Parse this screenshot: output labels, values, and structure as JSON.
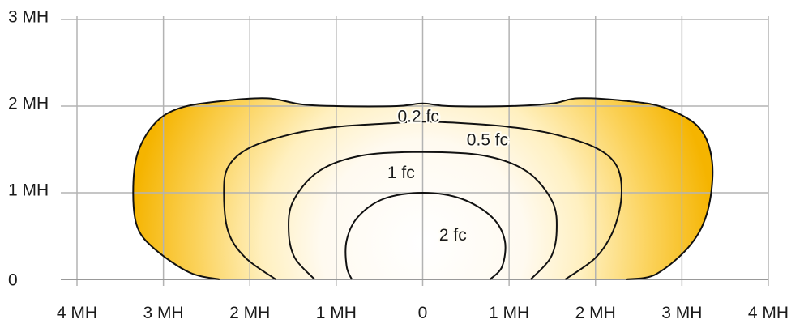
{
  "chart_data": {
    "type": "contour",
    "title": "",
    "xlabel": "",
    "ylabel": "",
    "xlim": [
      -4,
      4
    ],
    "ylim": [
      0,
      3
    ],
    "grid": true,
    "x_ticks": [
      {
        "value": -4,
        "label": "4 MH"
      },
      {
        "value": -3,
        "label": "3 MH"
      },
      {
        "value": -2,
        "label": "2 MH"
      },
      {
        "value": -1,
        "label": "1 MH"
      },
      {
        "value": 0,
        "label": "0"
      },
      {
        "value": 1,
        "label": "1 MH"
      },
      {
        "value": 2,
        "label": "2 MH"
      },
      {
        "value": 3,
        "label": "3 MH"
      },
      {
        "value": 4,
        "label": "4 MH"
      }
    ],
    "y_ticks": [
      {
        "value": 0,
        "label": "0"
      },
      {
        "value": 1,
        "label": "1 MH"
      },
      {
        "value": 2,
        "label": "2 MH"
      },
      {
        "value": 3,
        "label": "3 MH"
      }
    ],
    "fill_colors": {
      "outer": "#f5b400",
      "inner": "#ffffff"
    },
    "contours": [
      {
        "level": 0.2,
        "label": "0.2 fc",
        "label_pos": [
          -0.05,
          1.87
        ],
        "points": [
          [
            -2.35,
            0
          ],
          [
            -2.7,
            0.08
          ],
          [
            -3.1,
            0.35
          ],
          [
            -3.3,
            0.6
          ],
          [
            -3.35,
            1.0
          ],
          [
            -3.3,
            1.45
          ],
          [
            -3.1,
            1.8
          ],
          [
            -2.8,
            1.98
          ],
          [
            -2.3,
            2.06
          ],
          [
            -1.8,
            2.09
          ],
          [
            -1.4,
            2.02
          ],
          [
            -1.0,
            2.0
          ],
          [
            -0.3,
            2.0
          ],
          [
            0.0,
            2.03
          ],
          [
            0.3,
            2.0
          ],
          [
            1.0,
            2.0
          ],
          [
            1.5,
            2.03
          ],
          [
            1.8,
            2.09
          ],
          [
            2.35,
            2.06
          ],
          [
            2.8,
            1.98
          ],
          [
            3.2,
            1.75
          ],
          [
            3.35,
            1.35
          ],
          [
            3.3,
            0.8
          ],
          [
            3.1,
            0.4
          ],
          [
            2.7,
            0.06
          ],
          [
            2.35,
            0
          ]
        ]
      },
      {
        "level": 0.5,
        "label": "0.5 fc",
        "label_pos": [
          0.75,
          1.6
        ],
        "points": [
          [
            -1.7,
            0
          ],
          [
            -2.05,
            0.25
          ],
          [
            -2.25,
            0.55
          ],
          [
            -2.3,
            1.0
          ],
          [
            -2.25,
            1.3
          ],
          [
            -2.0,
            1.52
          ],
          [
            -1.5,
            1.68
          ],
          [
            -1.0,
            1.76
          ],
          [
            -0.4,
            1.8
          ],
          [
            0.0,
            1.82
          ],
          [
            0.5,
            1.8
          ],
          [
            1.0,
            1.76
          ],
          [
            1.5,
            1.68
          ],
          [
            2.0,
            1.52
          ],
          [
            2.25,
            1.3
          ],
          [
            2.3,
            0.95
          ],
          [
            2.2,
            0.55
          ],
          [
            2.0,
            0.25
          ],
          [
            1.65,
            0
          ]
        ]
      },
      {
        "level": 1,
        "label": "1 fc",
        "label_pos": [
          -0.25,
          1.22
        ],
        "points": [
          [
            -1.25,
            0
          ],
          [
            -1.48,
            0.25
          ],
          [
            -1.55,
            0.55
          ],
          [
            -1.5,
            0.9
          ],
          [
            -1.2,
            1.25
          ],
          [
            -0.7,
            1.43
          ],
          [
            0.0,
            1.47
          ],
          [
            0.7,
            1.43
          ],
          [
            1.2,
            1.25
          ],
          [
            1.5,
            0.9
          ],
          [
            1.55,
            0.55
          ],
          [
            1.48,
            0.25
          ],
          [
            1.25,
            0
          ]
        ]
      },
      {
        "level": 2,
        "label": "2 fc",
        "label_pos": [
          0.35,
          0.5
        ],
        "points": [
          [
            -0.82,
            0
          ],
          [
            -0.88,
            0.15
          ],
          [
            -0.88,
            0.45
          ],
          [
            -0.75,
            0.72
          ],
          [
            -0.45,
            0.93
          ],
          [
            0.0,
            1.0
          ],
          [
            0.45,
            0.93
          ],
          [
            0.8,
            0.72
          ],
          [
            0.95,
            0.45
          ],
          [
            0.92,
            0.15
          ],
          [
            0.78,
            0
          ]
        ]
      }
    ]
  }
}
